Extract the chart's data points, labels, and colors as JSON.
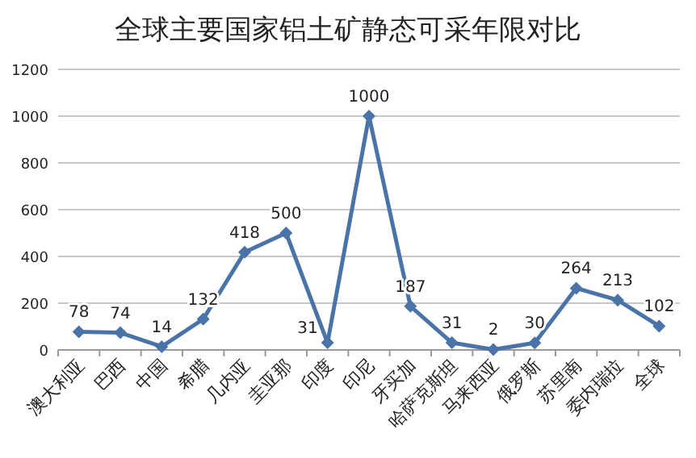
{
  "chart_data": {
    "type": "line",
    "title": "全球主要国家铝土矿静态可采年限对比",
    "categories": [
      "澳大利亚",
      "巴西",
      "中国",
      "希腊",
      "几内亚",
      "圭亚那",
      "印度",
      "印尼",
      "牙买加",
      "哈萨克斯坦",
      "马来西亚",
      "俄罗斯",
      "苏里南",
      "委内瑞拉",
      "全球"
    ],
    "series": [
      {
        "color": "#4a74a8",
        "values": [
          78,
          74,
          14,
          132,
          418,
          500,
          31,
          1000,
          187,
          31,
          2,
          30,
          264,
          213,
          102
        ]
      }
    ],
    "ylim": [
      0,
      1200
    ],
    "yticks": [
      0,
      200,
      400,
      600,
      800,
      1000,
      1200
    ],
    "grid": "y",
    "data_labels": true,
    "marker": "diamond",
    "line_style": "solid"
  }
}
